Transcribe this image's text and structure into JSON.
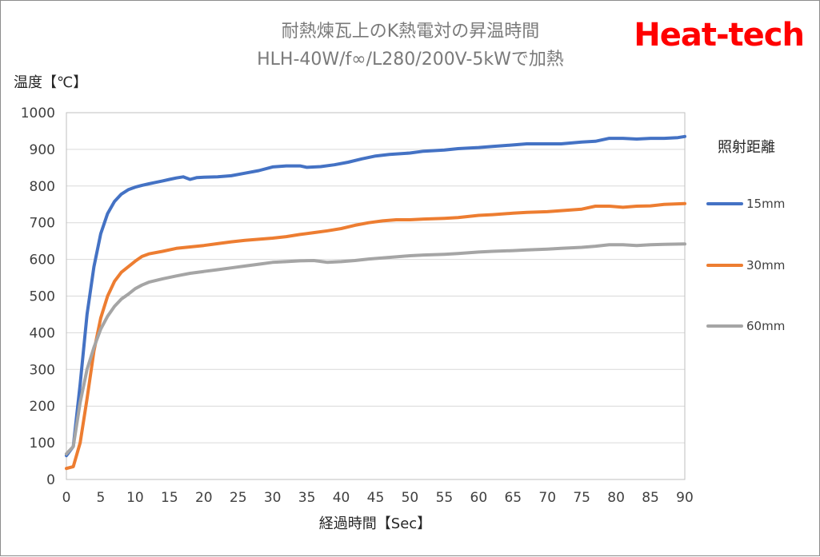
{
  "brand": {
    "text": "Heat-tech",
    "color": "#ff0000"
  },
  "chart_data": {
    "type": "line",
    "title": "耐熱煉瓦上のK熱電対の昇温時間",
    "subtitle": "HLH-40W/f∞/L280/200V-5kWで加熱",
    "xlabel": "経過時間【Sec】",
    "ylabel": "温度【℃】",
    "xlim": [
      0,
      90
    ],
    "ylim": [
      0,
      1000
    ],
    "xticks": [
      0,
      5,
      10,
      15,
      20,
      25,
      30,
      35,
      40,
      45,
      50,
      55,
      60,
      65,
      70,
      75,
      80,
      85,
      90
    ],
    "yticks": [
      0,
      100,
      200,
      300,
      400,
      500,
      600,
      700,
      800,
      900,
      1000
    ],
    "grid": "horizontal",
    "legend_title": "照射距離",
    "legend_position": "right",
    "series": [
      {
        "name": "15mm",
        "color": "#4472c4",
        "points": [
          [
            0,
            65
          ],
          [
            1,
            90
          ],
          [
            2,
            260
          ],
          [
            3,
            450
          ],
          [
            4,
            580
          ],
          [
            5,
            670
          ],
          [
            6,
            725
          ],
          [
            7,
            758
          ],
          [
            8,
            778
          ],
          [
            9,
            790
          ],
          [
            10,
            797
          ],
          [
            11,
            802
          ],
          [
            12,
            806
          ],
          [
            13,
            810
          ],
          [
            14,
            814
          ],
          [
            15,
            818
          ],
          [
            16,
            822
          ],
          [
            17,
            825
          ],
          [
            18,
            818
          ],
          [
            19,
            823
          ],
          [
            20,
            824
          ],
          [
            22,
            825
          ],
          [
            24,
            828
          ],
          [
            26,
            835
          ],
          [
            28,
            842
          ],
          [
            30,
            852
          ],
          [
            32,
            855
          ],
          [
            34,
            855
          ],
          [
            35,
            851
          ],
          [
            37,
            853
          ],
          [
            39,
            858
          ],
          [
            41,
            865
          ],
          [
            43,
            874
          ],
          [
            45,
            882
          ],
          [
            47,
            886
          ],
          [
            50,
            890
          ],
          [
            52,
            895
          ],
          [
            55,
            898
          ],
          [
            57,
            902
          ],
          [
            60,
            905
          ],
          [
            62,
            908
          ],
          [
            65,
            912
          ],
          [
            67,
            915
          ],
          [
            70,
            915
          ],
          [
            72,
            915
          ],
          [
            75,
            920
          ],
          [
            77,
            922
          ],
          [
            79,
            930
          ],
          [
            81,
            930
          ],
          [
            83,
            928
          ],
          [
            85,
            930
          ],
          [
            87,
            930
          ],
          [
            89,
            932
          ],
          [
            90,
            935
          ]
        ]
      },
      {
        "name": "30mm",
        "color": "#ed7d31",
        "points": [
          [
            0,
            30
          ],
          [
            1,
            35
          ],
          [
            2,
            100
          ],
          [
            3,
            220
          ],
          [
            4,
            350
          ],
          [
            5,
            440
          ],
          [
            6,
            500
          ],
          [
            7,
            540
          ],
          [
            8,
            565
          ],
          [
            9,
            580
          ],
          [
            10,
            595
          ],
          [
            11,
            608
          ],
          [
            12,
            615
          ],
          [
            14,
            622
          ],
          [
            16,
            630
          ],
          [
            18,
            634
          ],
          [
            20,
            638
          ],
          [
            22,
            643
          ],
          [
            24,
            648
          ],
          [
            26,
            652
          ],
          [
            28,
            655
          ],
          [
            30,
            658
          ],
          [
            32,
            662
          ],
          [
            34,
            668
          ],
          [
            36,
            673
          ],
          [
            38,
            678
          ],
          [
            40,
            684
          ],
          [
            42,
            693
          ],
          [
            44,
            700
          ],
          [
            46,
            705
          ],
          [
            48,
            708
          ],
          [
            50,
            708
          ],
          [
            52,
            710
          ],
          [
            55,
            712
          ],
          [
            57,
            714
          ],
          [
            60,
            720
          ],
          [
            62,
            722
          ],
          [
            65,
            726
          ],
          [
            67,
            728
          ],
          [
            70,
            730
          ],
          [
            72,
            733
          ],
          [
            75,
            737
          ],
          [
            77,
            745
          ],
          [
            79,
            745
          ],
          [
            81,
            742
          ],
          [
            83,
            745
          ],
          [
            85,
            746
          ],
          [
            87,
            750
          ],
          [
            90,
            752
          ]
        ]
      },
      {
        "name": "60mm",
        "color": "#a5a5a5",
        "points": [
          [
            0,
            70
          ],
          [
            1,
            90
          ],
          [
            2,
            210
          ],
          [
            3,
            300
          ],
          [
            4,
            360
          ],
          [
            5,
            410
          ],
          [
            6,
            445
          ],
          [
            7,
            472
          ],
          [
            8,
            492
          ],
          [
            9,
            505
          ],
          [
            10,
            520
          ],
          [
            11,
            530
          ],
          [
            12,
            538
          ],
          [
            14,
            547
          ],
          [
            16,
            555
          ],
          [
            18,
            562
          ],
          [
            20,
            567
          ],
          [
            22,
            572
          ],
          [
            24,
            577
          ],
          [
            26,
            582
          ],
          [
            28,
            587
          ],
          [
            30,
            592
          ],
          [
            32,
            594
          ],
          [
            34,
            596
          ],
          [
            36,
            597
          ],
          [
            38,
            592
          ],
          [
            40,
            594
          ],
          [
            42,
            597
          ],
          [
            44,
            601
          ],
          [
            46,
            604
          ],
          [
            48,
            607
          ],
          [
            50,
            610
          ],
          [
            52,
            612
          ],
          [
            55,
            614
          ],
          [
            57,
            616
          ],
          [
            60,
            620
          ],
          [
            62,
            622
          ],
          [
            65,
            624
          ],
          [
            67,
            626
          ],
          [
            70,
            628
          ],
          [
            72,
            630
          ],
          [
            75,
            633
          ],
          [
            77,
            636
          ],
          [
            79,
            640
          ],
          [
            81,
            640
          ],
          [
            83,
            638
          ],
          [
            85,
            640
          ],
          [
            87,
            641
          ],
          [
            90,
            642
          ]
        ]
      }
    ]
  }
}
